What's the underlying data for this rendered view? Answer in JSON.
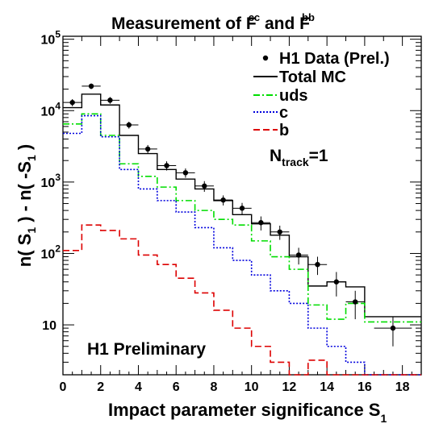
{
  "chart_data": {
    "type": "line",
    "title": {
      "text": "Measurement of F",
      "sup1": "cc",
      "mid": " and F",
      "sup2": "bb"
    },
    "xlabel": {
      "text": "Impact parameter significance S",
      "sub": "1"
    },
    "ylabel": {
      "a": "n( S",
      "a_sub": "1",
      "b": " ) - n( -S",
      "b_sub": "1",
      "c": " )"
    },
    "xlim": [
      0,
      19
    ],
    "ylim": [
      2,
      110000
    ],
    "y_scale": "log",
    "x_ticks": [
      "0",
      "2",
      "4",
      "6",
      "8",
      "10",
      "12",
      "14",
      "16",
      "18"
    ],
    "y_ticks": [
      {
        "value": 10,
        "base": "10",
        "exp": ""
      },
      {
        "value": 100,
        "base": "10",
        "exp": "2"
      },
      {
        "value": 1000,
        "base": "10",
        "exp": "3"
      },
      {
        "value": 10000,
        "base": "10",
        "exp": "4"
      },
      {
        "value": 100000,
        "base": "10",
        "exp": "5"
      }
    ],
    "bin_edges": [
      0,
      1,
      2,
      3,
      4,
      5,
      6,
      7,
      8,
      9,
      10,
      11,
      12,
      13,
      14,
      15,
      16,
      17,
      18,
      19
    ],
    "legend": [
      {
        "label": "H1 Data (Prel.)",
        "style": "marker",
        "color": "#000000"
      },
      {
        "label": "Total MC",
        "style": "solid",
        "color": "#000000"
      },
      {
        "label": "uds",
        "style": "dashdot",
        "color": "#00dd00"
      },
      {
        "label": "c",
        "style": "dotted",
        "color": "#0000dd"
      },
      {
        "label": "b",
        "style": "dashed",
        "color": "#dd0000"
      }
    ],
    "legend_position": "top-right",
    "series": [
      {
        "name": "Total MC",
        "values": [
          11000,
          17000,
          12000,
          4500,
          2500,
          1500,
          1100,
          800,
          550,
          350,
          260,
          180,
          90,
          35,
          40,
          34,
          13,
          13,
          13
        ]
      },
      {
        "name": "uds",
        "values": [
          6500,
          9000,
          4500,
          1800,
          1200,
          850,
          550,
          400,
          300,
          250,
          150,
          90,
          60,
          19,
          12,
          20,
          11,
          11,
          11
        ]
      },
      {
        "name": "c",
        "values": [
          4800,
          8500,
          4300,
          1500,
          800,
          550,
          380,
          230,
          120,
          80,
          50,
          30,
          20,
          9,
          5,
          3,
          2,
          2,
          2
        ]
      },
      {
        "name": "b",
        "values": [
          110,
          250,
          210,
          160,
          95,
          70,
          45,
          28,
          16,
          9,
          5,
          3,
          1.8,
          3.2,
          1.5,
          1.5,
          1.5,
          1.5,
          1.5
        ]
      }
    ],
    "data_points": {
      "name": "H1 Data (Prel.)",
      "x": [
        0.5,
        1.5,
        2.5,
        3.5,
        4.5,
        5.5,
        6.5,
        7.5,
        8.5,
        9.5,
        10.5,
        11.5,
        12.5,
        13.5,
        14.5,
        15.5,
        17.5
      ],
      "y": [
        13000,
        22000,
        14000,
        6300,
        2900,
        1700,
        1350,
        880,
        560,
        430,
        270,
        200,
        95,
        70,
        40,
        21,
        9
      ],
      "y_err": [
        1500,
        2000,
        1500,
        700,
        400,
        250,
        200,
        150,
        90,
        80,
        60,
        45,
        25,
        20,
        15,
        9,
        4
      ],
      "x_err": [
        0.5,
        0.5,
        0.5,
        0.5,
        0.5,
        0.5,
        0.5,
        0.5,
        0.5,
        0.5,
        0.5,
        0.5,
        0.5,
        0.5,
        0.5,
        0.5,
        1.0
      ]
    },
    "annotations": [
      {
        "type": "track",
        "base": "N",
        "sub": "track",
        "tail": "=1"
      },
      {
        "type": "plain",
        "text": "H1 Preliminary"
      }
    ]
  }
}
